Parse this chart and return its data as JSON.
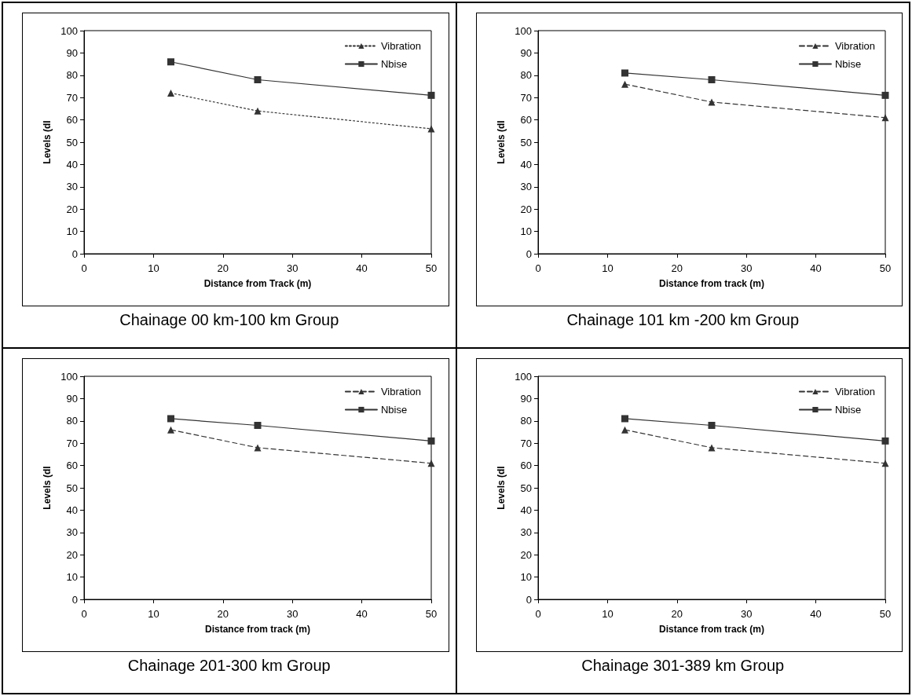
{
  "chart_data": [
    {
      "type": "line",
      "title": "Chainage 00 km-100 km Group",
      "xlabel": "Distance from Track (m)",
      "ylabel": "Levels (dI",
      "xlim": [
        0,
        50
      ],
      "xticks": [
        0,
        10,
        20,
        30,
        40,
        50
      ],
      "ylim": [
        0,
        100
      ],
      "yticks": [
        0,
        10,
        20,
        30,
        40,
        50,
        60,
        70,
        80,
        90,
        100
      ],
      "grid": false,
      "legend": "top right",
      "x": [
        12.5,
        25,
        50
      ],
      "series": [
        {
          "name": "Vibration",
          "color": "#333333",
          "marker": "triangle",
          "line_style": "dotted",
          "values": [
            72,
            64,
            56
          ]
        },
        {
          "name": "Nbise",
          "color": "#333333",
          "marker": "square",
          "line_style": "solid",
          "values": [
            86,
            78,
            71
          ]
        }
      ]
    },
    {
      "type": "line",
      "title": "Chainage 101 km -200 km Group",
      "xlabel": "Distance from track (m)",
      "ylabel": "Levels (dI",
      "xlim": [
        0,
        50
      ],
      "xticks": [
        0,
        10,
        20,
        30,
        40,
        50
      ],
      "ylim": [
        0,
        100
      ],
      "yticks": [
        0,
        10,
        20,
        30,
        40,
        50,
        60,
        70,
        80,
        90,
        100
      ],
      "grid": false,
      "legend": "top right",
      "x": [
        12.5,
        25,
        50
      ],
      "series": [
        {
          "name": "Vibration",
          "color": "#333333",
          "marker": "triangle",
          "line_style": "dashed",
          "values": [
            76,
            68,
            61
          ]
        },
        {
          "name": "Nbise",
          "color": "#333333",
          "marker": "square",
          "line_style": "solid",
          "values": [
            81,
            78,
            71
          ]
        }
      ]
    },
    {
      "type": "line",
      "title": "Chainage 201-300 km Group",
      "xlabel": "Distance from track (m)",
      "ylabel": "Levels (dI",
      "xlim": [
        0,
        50
      ],
      "xticks": [
        0,
        10,
        20,
        30,
        40,
        50
      ],
      "ylim": [
        0,
        100
      ],
      "yticks": [
        0,
        10,
        20,
        30,
        40,
        50,
        60,
        70,
        80,
        90,
        100
      ],
      "grid": false,
      "legend": "top right",
      "x": [
        12.5,
        25,
        50
      ],
      "series": [
        {
          "name": "Vibration",
          "color": "#333333",
          "marker": "triangle",
          "line_style": "dashed",
          "values": [
            76,
            68,
            61
          ]
        },
        {
          "name": "Nbise",
          "color": "#333333",
          "marker": "square",
          "line_style": "solid",
          "values": [
            81,
            78,
            71
          ]
        }
      ]
    },
    {
      "type": "line",
      "title": "Chainage 301-389 km Group",
      "xlabel": "Distance from track (m)",
      "ylabel": "Levels (dI",
      "xlim": [
        0,
        50
      ],
      "xticks": [
        0,
        10,
        20,
        30,
        40,
        50
      ],
      "ylim": [
        0,
        100
      ],
      "yticks": [
        0,
        10,
        20,
        30,
        40,
        50,
        60,
        70,
        80,
        90,
        100
      ],
      "grid": false,
      "legend": "top right",
      "x": [
        12.5,
        25,
        50
      ],
      "series": [
        {
          "name": "Vibration",
          "color": "#333333",
          "marker": "triangle",
          "line_style": "dashed",
          "values": [
            76,
            68,
            61
          ]
        },
        {
          "name": "Nbise",
          "color": "#333333",
          "marker": "square",
          "line_style": "solid",
          "values": [
            81,
            78,
            71
          ]
        }
      ]
    }
  ]
}
